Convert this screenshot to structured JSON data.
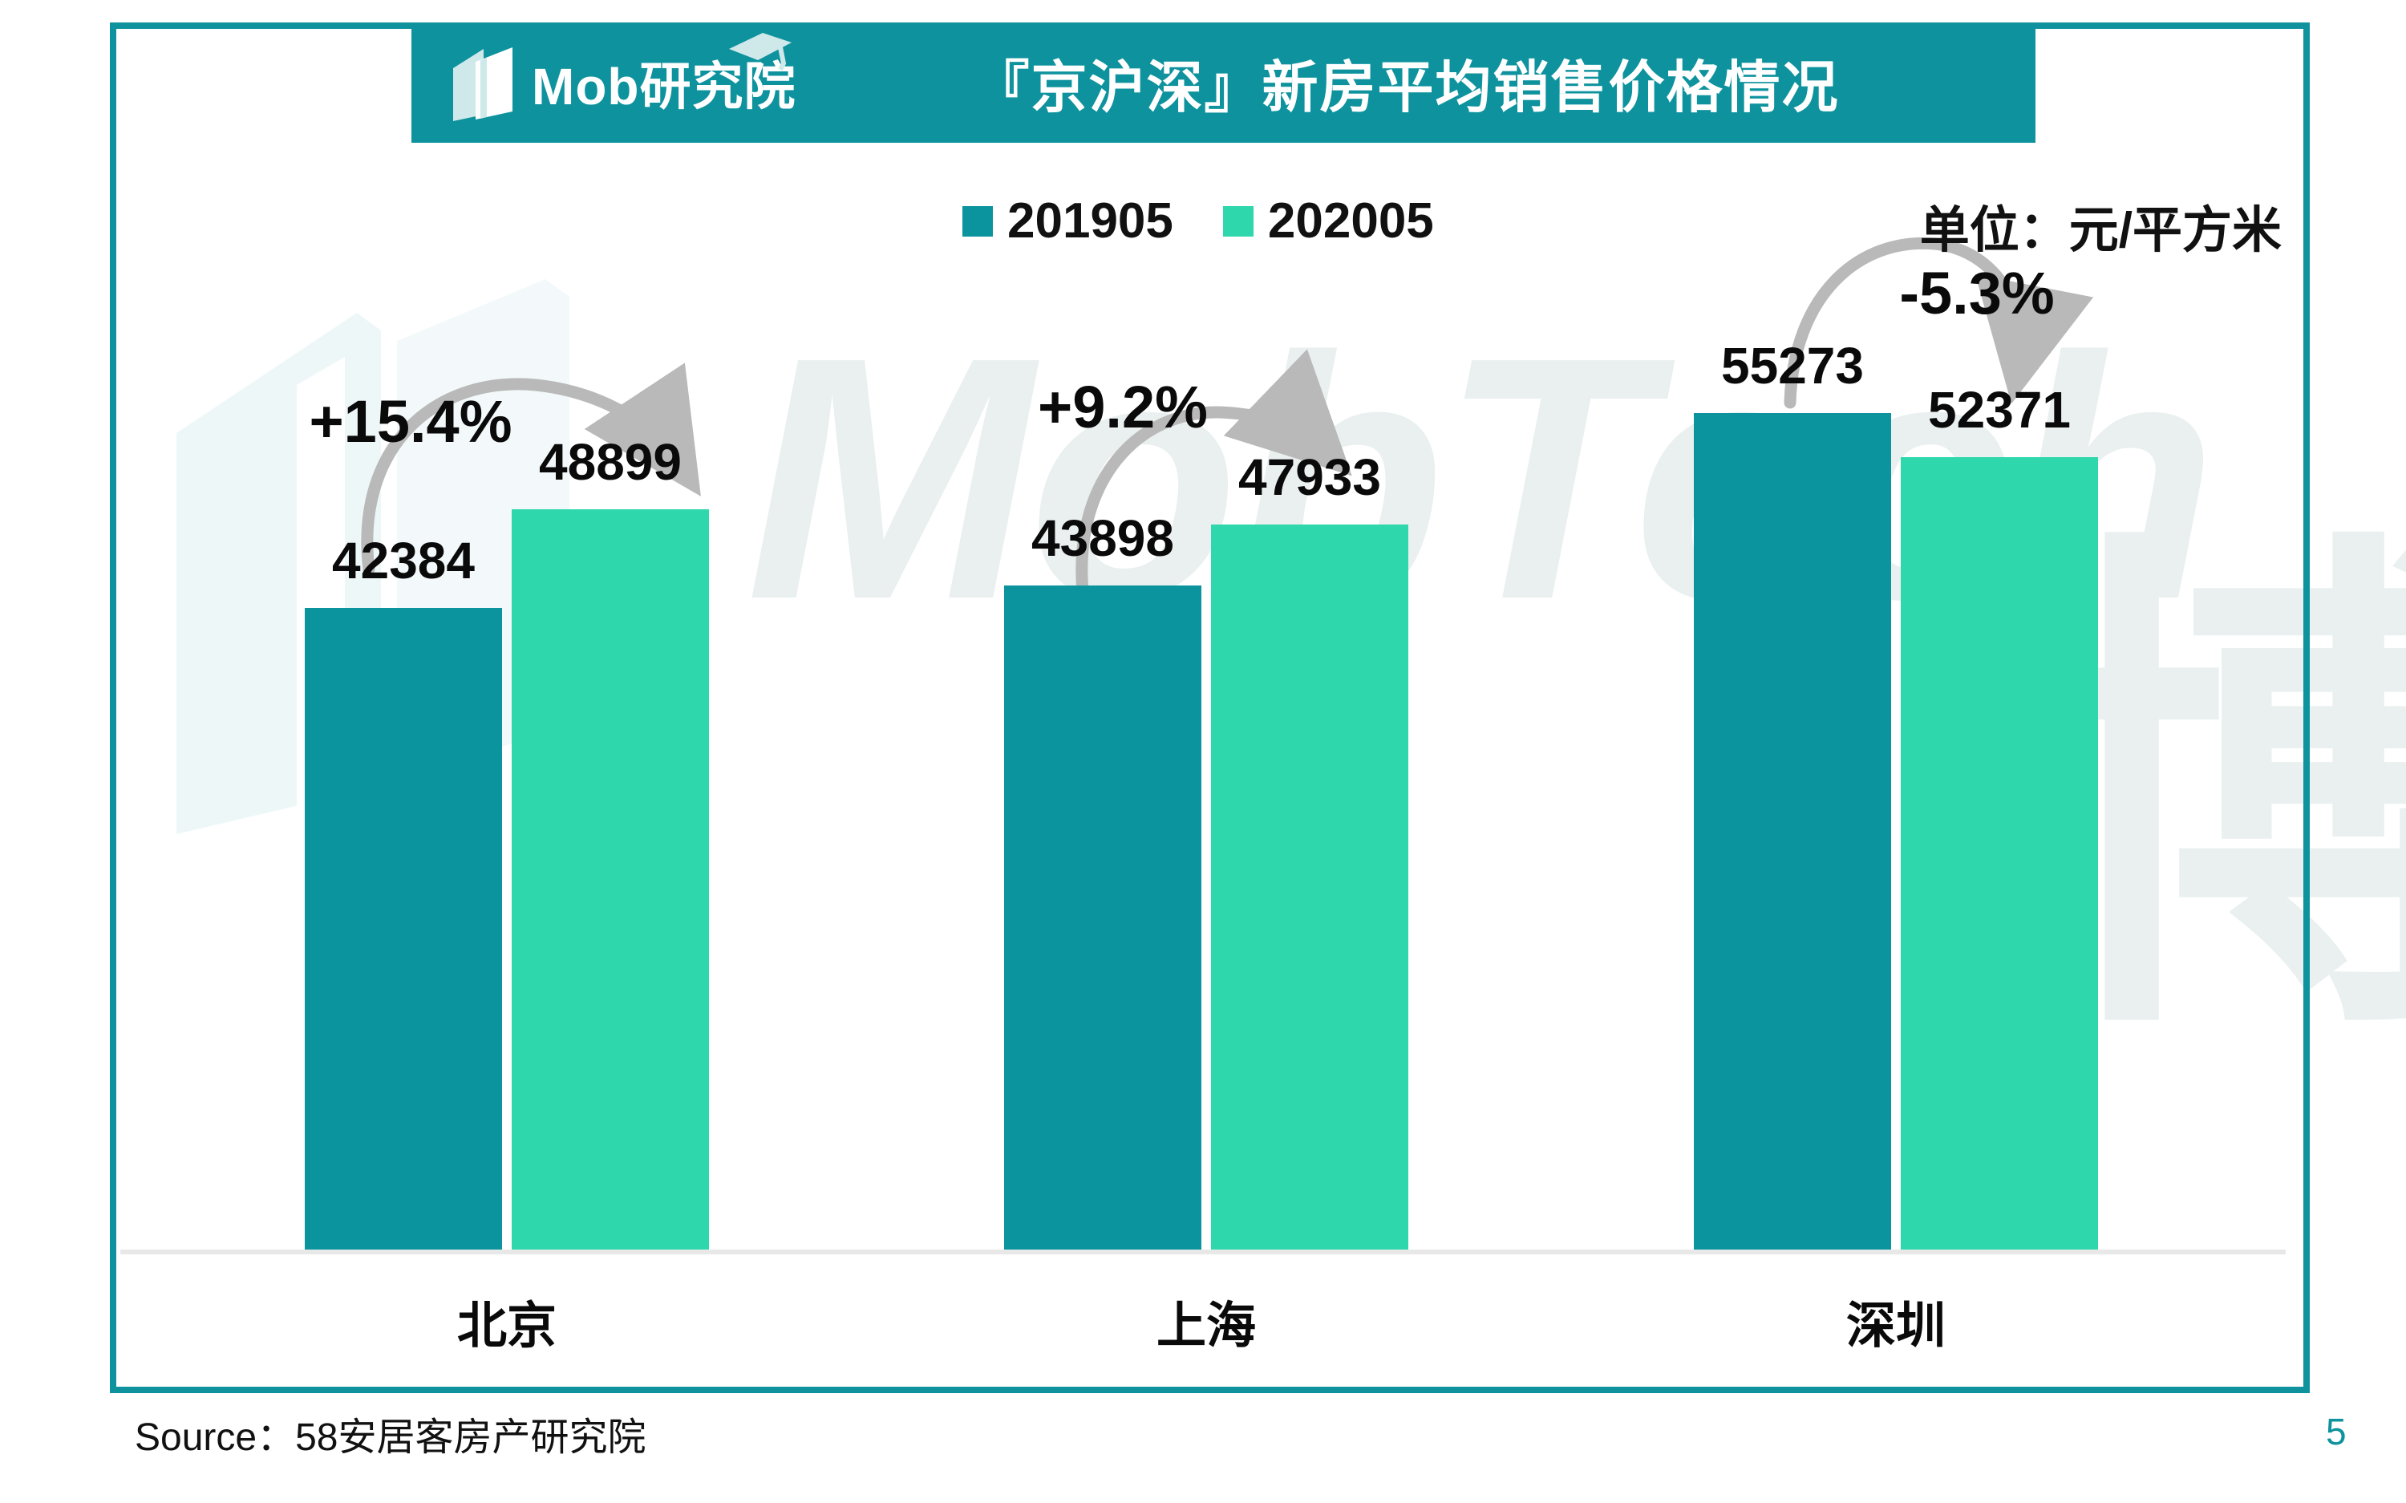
{
  "header": {
    "logo_text": "Mob研究院",
    "title": "『京沪深』新房平均销售价格情况"
  },
  "legend": {
    "items": [
      {
        "label": "201905",
        "color": "#0B949E"
      },
      {
        "label": "202005",
        "color": "#2FD7AC"
      }
    ]
  },
  "unit_label": "单位：元/平方米",
  "chart_data": {
    "type": "bar",
    "title": "『京沪深』新房平均销售价格情况",
    "categories": [
      "北京",
      "上海",
      "深圳"
    ],
    "series": [
      {
        "name": "201905",
        "color": "#0B949E",
        "values": [
          42384,
          43898,
          55273
        ]
      },
      {
        "name": "202005",
        "color": "#2FD7AC",
        "values": [
          48899,
          47933,
          52371
        ]
      }
    ],
    "change_labels": [
      "+15.4%",
      "+9.2%",
      "-5.3%"
    ],
    "ylabel": "元/平方米",
    "ylim": [
      0,
      58000
    ],
    "grid": false,
    "legend_position": "top-center",
    "value_labels_shown": true
  },
  "watermark": {
    "latin": "MobTech",
    "cjk": "博"
  },
  "footer": {
    "source": "Source：58安居客房产研究院",
    "page_number": "5"
  },
  "colors": {
    "teal": "#0E939E",
    "dark_bar": "#0B949E",
    "mint_bar": "#2FD7AC",
    "arrow_gray": "#B9B9B9",
    "baseline_gray": "#E8E8E8"
  }
}
